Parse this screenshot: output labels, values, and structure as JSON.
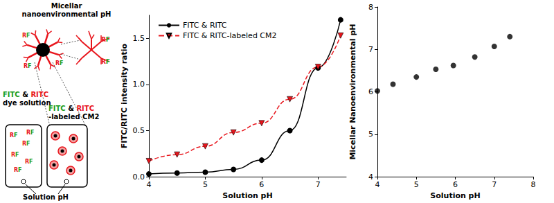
{
  "chart_data": [
    {
      "type": "line",
      "xlabel": "Solution pH",
      "ylabel": "FITC/RITC intensity ratio",
      "x": [
        4,
        4.5,
        5,
        5.5,
        6,
        6.5,
        7,
        7.4
      ],
      "series": [
        {
          "name": "FITC & RITC",
          "color": "#000000",
          "marker": "circle",
          "line_style": "solid",
          "values": [
            0.03,
            0.04,
            0.05,
            0.08,
            0.18,
            0.5,
            1.18,
            1.7
          ]
        },
        {
          "name": "FITC & RITC-labeled CM2",
          "color": "#e8141b",
          "marker": "triangle-down",
          "line_style": "dashed",
          "values": [
            0.17,
            0.24,
            0.33,
            0.48,
            0.58,
            0.84,
            1.19,
            1.53
          ]
        }
      ],
      "xlim": [
        4,
        7.5
      ],
      "xticks": [
        4,
        5,
        6,
        7
      ],
      "ylim": [
        0,
        1.75
      ],
      "yticks": [
        {
          "value": 0,
          "label": "0.0"
        },
        {
          "value": 0.5,
          "label": "0.5"
        },
        {
          "value": 1,
          "label": "1.0"
        },
        {
          "value": 1.5,
          "label": "1.5"
        }
      ],
      "legend": "upper left",
      "grid": false
    },
    {
      "type": "scatter",
      "xlabel": "Solution pH",
      "ylabel": "Micellar Nanoenvironmental pH",
      "x": [
        4,
        4.4,
        5,
        5.5,
        5.95,
        6.5,
        7,
        7.4
      ],
      "series": [
        {
          "color": "#000000",
          "marker": "circle",
          "values": [
            6.02,
            6.18,
            6.35,
            6.53,
            6.62,
            6.82,
            7.07,
            7.3
          ]
        }
      ],
      "xlim": [
        4,
        8
      ],
      "xticks": [
        4,
        5,
        6,
        7,
        8
      ],
      "ylim": [
        4,
        8
      ],
      "yticks": [
        4,
        5,
        6,
        7,
        8
      ],
      "grid": false
    }
  ],
  "diagram": {
    "title": [
      "Micellar",
      "nanoenvironmental pH"
    ],
    "boxes": [
      {
        "label": [
          "FITC & RITC",
          "dye solution"
        ]
      },
      {
        "label": [
          "FITC & RITC",
          "-labeled CM2"
        ]
      }
    ],
    "arrow_label": "Solution pH",
    "dye_letters": [
      {
        "text": "R",
        "color": "#e8141b"
      },
      {
        "text": "F",
        "color": "#1a9e1a"
      }
    ],
    "word_colors": {
      "FITC": "#1a9e1a",
      "RITC": "#e8141b"
    }
  }
}
